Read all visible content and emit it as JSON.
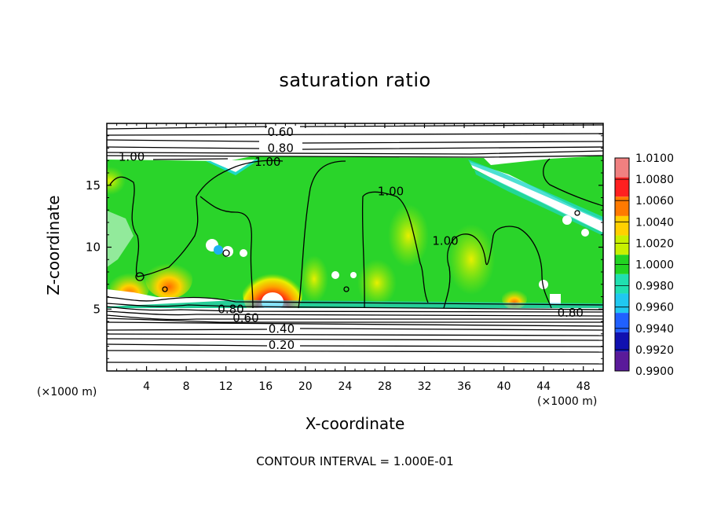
{
  "chart_data": {
    "type": "heatmap",
    "title": "saturation ratio",
    "xlabel": "X-coordinate",
    "ylabel": "Z-coordinate",
    "x_unit_label": "(×1000 m)",
    "z_unit_label": "(×1000 m)",
    "footer": "CONTOUR INTERVAL = 1.000E-01",
    "xlim": [
      0,
      50
    ],
    "ylim": [
      0,
      20
    ],
    "x_ticks": [
      4,
      8,
      12,
      16,
      20,
      24,
      28,
      32,
      36,
      40,
      44,
      48
    ],
    "y_ticks": [
      5,
      10,
      15
    ],
    "colorbar": {
      "levels": [
        "1.0100",
        "1.0080",
        "1.0060",
        "1.0040",
        "1.0020",
        "1.0000",
        "0.9980",
        "0.9960",
        "0.9940",
        "0.9920",
        "0.9900"
      ],
      "colors": [
        "#f08080",
        "#ff2020",
        "#ff7a00",
        "#ffd000",
        "#c8f000",
        "#22d422",
        "#20e0b0",
        "#20c8f0",
        "#2060ff",
        "#1010b0",
        "#5a1a9a"
      ]
    },
    "contour_labels": [
      {
        "text": "0.60",
        "x": 17.5,
        "z": 19.3
      },
      {
        "text": "0.80",
        "x": 17.5,
        "z": 18.0
      },
      {
        "text": "1.00",
        "x": 2.5,
        "z": 17.3
      },
      {
        "text": "1.00",
        "x": 16.2,
        "z": 16.9
      },
      {
        "text": "1.00",
        "x": 28.6,
        "z": 14.5
      },
      {
        "text": "1.00",
        "x": 34.1,
        "z": 10.5
      },
      {
        "text": "0.80",
        "x": 12.5,
        "z": 5.0
      },
      {
        "text": "0.60",
        "x": 14.0,
        "z": 4.3
      },
      {
        "text": "0.80",
        "x": 46.7,
        "z": 4.7
      },
      {
        "text": "0.40",
        "x": 17.6,
        "z": 3.4
      },
      {
        "text": "0.20",
        "x": 17.6,
        "z": 2.1
      }
    ]
  }
}
